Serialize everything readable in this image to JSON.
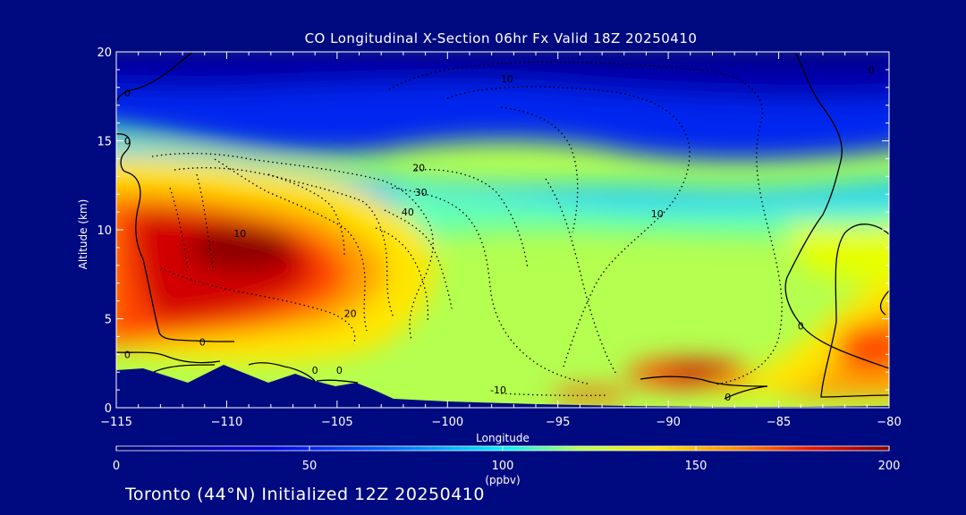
{
  "chart_data": {
    "type": "heatmap",
    "title": "CO Longitudinal X-Section 06hr  Fx Valid 18Z 20250410",
    "xlabel": "Longitude",
    "ylabel": "Altitude (km)",
    "xlim": [
      -115,
      -80
    ],
    "ylim": [
      0,
      20
    ],
    "x_ticks": [
      -115,
      -110,
      -105,
      -100,
      -95,
      -90,
      -85,
      -80
    ],
    "x_tick_labels": [
      "−115",
      "−110",
      "−105",
      "−100",
      "−95",
      "−90",
      "−85",
      "−80"
    ],
    "y_ticks": [
      0,
      5,
      10,
      15,
      20
    ],
    "y_tick_labels": [
      "0",
      "5",
      "10",
      "15",
      "20"
    ],
    "colorbar": {
      "label": "(ppbv)",
      "min": 0,
      "max": 200,
      "ticks": [
        0,
        50,
        100,
        150,
        200
      ],
      "tick_labels": [
        "0",
        "50",
        "100",
        "150",
        "200"
      ]
    },
    "contour_labels": [
      {
        "text": "10",
        "lon": -97.3,
        "alt": 18.3
      },
      {
        "text": "0",
        "lon": -80.8,
        "alt": 18.8
      },
      {
        "text": "0",
        "lon": -114.5,
        "alt": 17.5
      },
      {
        "text": "0",
        "lon": -114.5,
        "alt": 14.8
      },
      {
        "text": "20",
        "lon": -101.3,
        "alt": 13.3
      },
      {
        "text": "30",
        "lon": -101.2,
        "alt": 11.9
      },
      {
        "text": "40",
        "lon": -101.8,
        "alt": 10.8
      },
      {
        "text": "10",
        "lon": -90.5,
        "alt": 10.7
      },
      {
        "text": "10",
        "lon": -109.4,
        "alt": 9.6
      },
      {
        "text": "20",
        "lon": -104.4,
        "alt": 5.1
      },
      {
        "text": "0",
        "lon": -111.1,
        "alt": 3.5
      },
      {
        "text": "0",
        "lon": -114.5,
        "alt": 2.8
      },
      {
        "text": "0",
        "lon": -106.0,
        "alt": 1.9
      },
      {
        "text": "0",
        "lon": -104.9,
        "alt": 1.9
      },
      {
        "text": "-10",
        "lon": -97.7,
        "alt": 0.8
      },
      {
        "text": "0",
        "lon": -87.3,
        "alt": 0.4
      },
      {
        "text": "0",
        "lon": -84.0,
        "alt": 4.4
      }
    ]
  },
  "footer": "Toronto (44°N) Initialized 12Z 20250410",
  "colors": {
    "background": "#000a80",
    "colormap": [
      "#00006e",
      "#0000c8",
      "#0032ff",
      "#0096ff",
      "#00e6ff",
      "#64ffb4",
      "#b4ff50",
      "#ffe600",
      "#ffa000",
      "#ff4600",
      "#e60000",
      "#8c0000"
    ]
  }
}
